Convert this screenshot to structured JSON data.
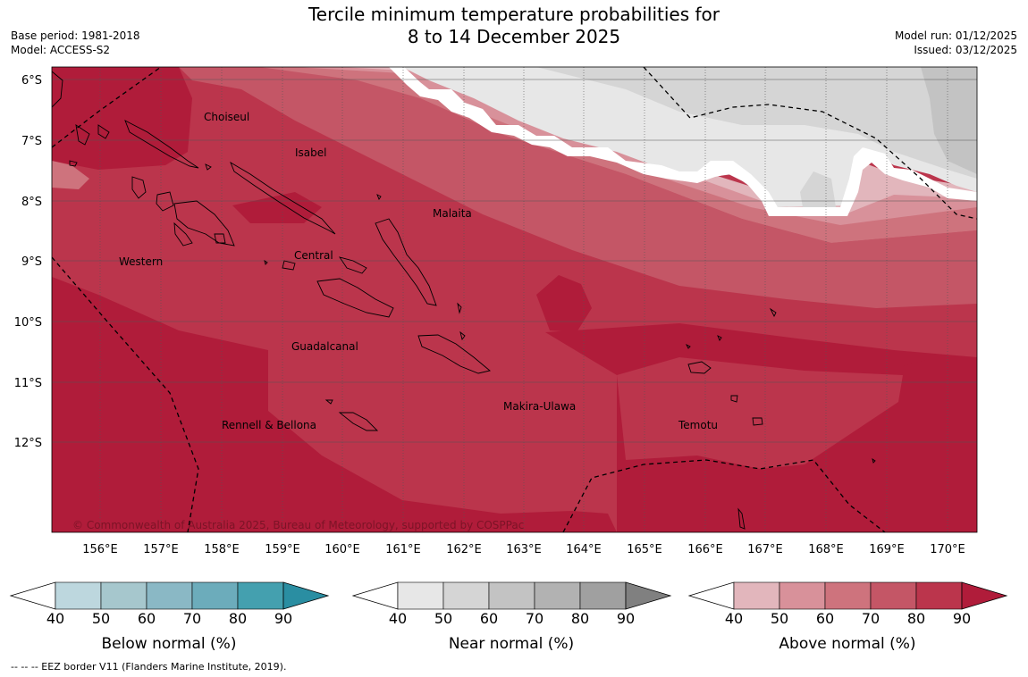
{
  "header": {
    "title_line1": "Tercile minimum temperature probabilities for",
    "title_line2": "8 to 14 December 2025",
    "base_period": "Base period: 1981-2018",
    "model": "Model: ACCESS-S2",
    "model_run": "Model run: 01/12/2025",
    "issued": "Issued: 03/12/2025"
  },
  "map": {
    "lat_labels": [
      "6°S",
      "7°S",
      "8°S",
      "9°S",
      "10°S",
      "11°S",
      "12°S"
    ],
    "lon_labels": [
      "156°E",
      "157°E",
      "158°E",
      "159°E",
      "160°E",
      "161°E",
      "162°E",
      "163°E",
      "164°E",
      "165°E",
      "166°E",
      "167°E",
      "168°E",
      "169°E",
      "170°E"
    ],
    "regions": [
      "Choiseul",
      "Isabel",
      "Malaita",
      "Western",
      "Central",
      "Guadalcanal",
      "Makira-Ulawa",
      "Rennell & Bellona",
      "Temotu"
    ],
    "copyright": "© Commonwealth of Australia 2025, Bureau of Meteorology, supported by COSPPac"
  },
  "colorbars": [
    {
      "title": "Below normal (%)",
      "ticks": [
        "40",
        "50",
        "60",
        "70",
        "80",
        "90"
      ],
      "colors": [
        "#ffffff",
        "#bdd7de",
        "#a6c7cd",
        "#8ab8c5",
        "#6cacbb",
        "#44a0af",
        "#2a8ea2"
      ]
    },
    {
      "title": "Near normal (%)",
      "ticks": [
        "40",
        "50",
        "60",
        "70",
        "80",
        "90"
      ],
      "colors": [
        "#ffffff",
        "#e7e7e7",
        "#d5d5d5",
        "#c3c3c3",
        "#b2b2b2",
        "#a0a0a0",
        "#808080"
      ]
    },
    {
      "title": "Above normal (%)",
      "ticks": [
        "40",
        "50",
        "60",
        "70",
        "80",
        "90"
      ],
      "colors": [
        "#ffffff",
        "#e2b6bc",
        "#d8919a",
        "#ce737d",
        "#c45666",
        "#bb354c",
        "#b01c3a"
      ]
    }
  ],
  "footnote": "--  --  -- EEZ border V11 (Flanders Marine Institute, 2019)."
}
